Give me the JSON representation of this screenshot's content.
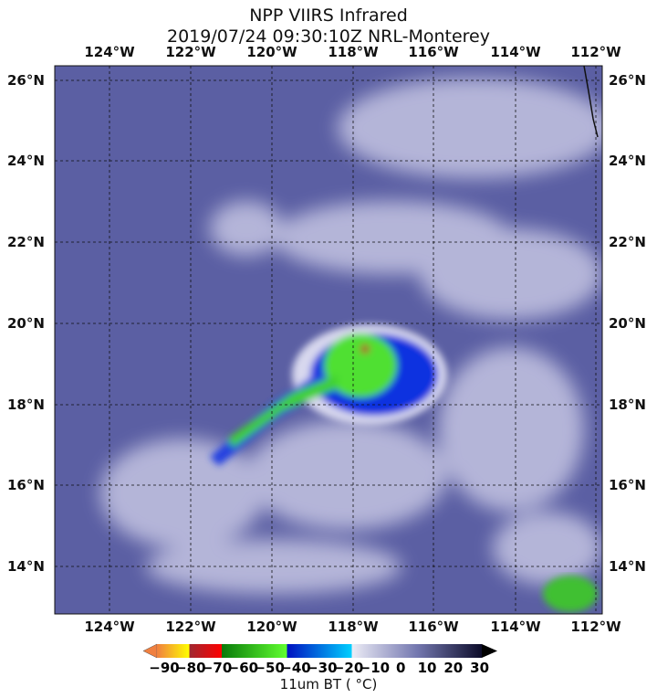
{
  "title_line1": "NPP VIIRS Infrared",
  "title_line2": "2019/07/24 09:30:10Z NRL-Monterey",
  "lon_labels": [
    "124°W",
    "122°W",
    "120°W",
    "118°W",
    "116°W",
    "114°W",
    "112°W"
  ],
  "lat_labels": [
    "26°N",
    "24°N",
    "22°N",
    "20°N",
    "18°N",
    "16°N",
    "14°N"
  ],
  "colorbar": {
    "ticks": [
      "−90",
      "−80",
      "−70",
      "−60",
      "−50",
      "−40",
      "−30",
      "−20",
      "−10",
      "0",
      "10",
      "20",
      "30"
    ],
    "label": "11um BT ( °C)",
    "range": [
      -90,
      30
    ],
    "colors": {
      "orange": "#f08040",
      "yellow": "#ffff00",
      "red": "#ff0000",
      "dark_red": "#a02830",
      "green": "#10a010",
      "light_green": "#60ff30",
      "blue": "#0010c0",
      "cyan": "#00d0ff",
      "light": "#e8e8f4",
      "dark": "#101030"
    }
  },
  "image_colors": {
    "ocean": "#5b5fa3",
    "cloud": "#c8c8e4"
  }
}
